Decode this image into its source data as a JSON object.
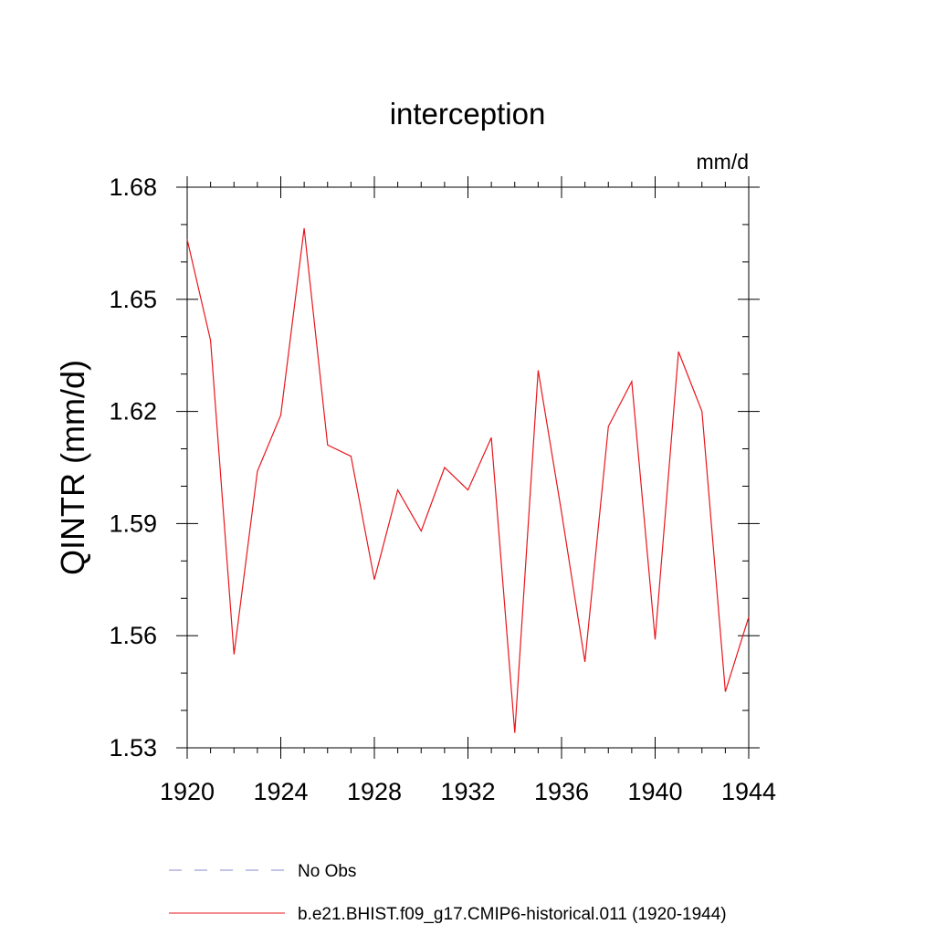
{
  "chart_data": {
    "type": "line",
    "title": "interception",
    "units": "mm/d",
    "ylabel": "QINTR  (mm/d)",
    "xlabel": "",
    "xlim": [
      1920,
      1944
    ],
    "ylim": [
      1.53,
      1.68
    ],
    "x_ticks": [
      1920,
      1924,
      1928,
      1932,
      1936,
      1940,
      1944
    ],
    "x_tick_labels": [
      "1920",
      "1924",
      "1928",
      "1932",
      "1936",
      "1940",
      "1944"
    ],
    "y_ticks": [
      1.53,
      1.56,
      1.59,
      1.62,
      1.65,
      1.68
    ],
    "y_tick_labels": [
      "1.53",
      "1.56",
      "1.59",
      "1.62",
      "1.65",
      "1.68"
    ],
    "grid": false,
    "legend_position": "bottom",
    "series": [
      {
        "name": "b.e21.BHIST.f09_g17.CMIP6-historical.011 (1920-1944)",
        "color": "#e8161c",
        "style": "solid",
        "x": [
          1920,
          1921,
          1922,
          1923,
          1924,
          1925,
          1926,
          1927,
          1928,
          1929,
          1930,
          1931,
          1932,
          1933,
          1934,
          1935,
          1936,
          1937,
          1938,
          1939,
          1940,
          1941,
          1942,
          1943,
          1944
        ],
        "values": [
          1.666,
          1.639,
          1.555,
          1.604,
          1.619,
          1.669,
          1.611,
          1.608,
          1.575,
          1.599,
          1.588,
          1.605,
          1.599,
          1.613,
          1.534,
          1.631,
          1.593,
          1.553,
          1.616,
          1.628,
          1.559,
          1.636,
          1.62,
          1.545,
          1.565
        ]
      }
    ],
    "legend": [
      {
        "label": "No Obs",
        "color": "#8888cc",
        "style": "dashed"
      },
      {
        "label": "b.e21.BHIST.f09_g17.CMIP6-historical.011 (1920-1944)",
        "color": "#e8161c",
        "style": "solid"
      }
    ]
  }
}
